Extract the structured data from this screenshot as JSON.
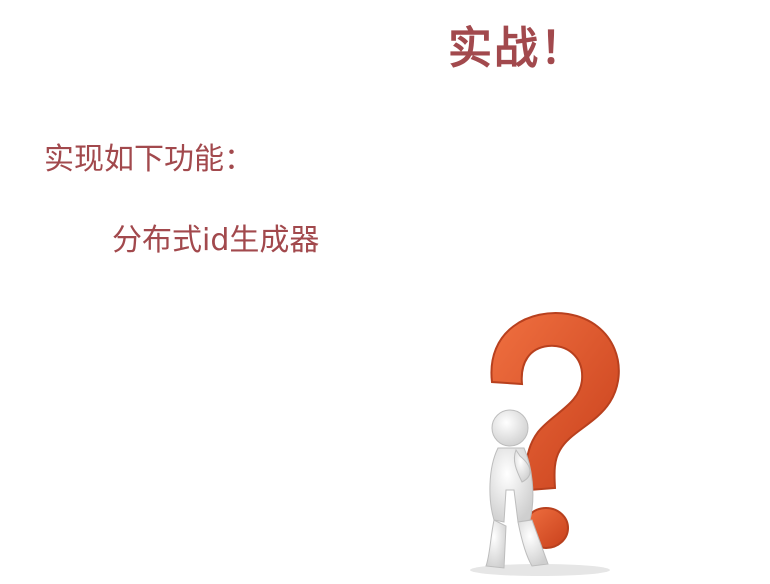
{
  "slide": {
    "title": "实战！",
    "heading": "实现如下功能：",
    "items": [
      "分布式id生成器"
    ],
    "colors": {
      "text": "#a2494d",
      "question_mark": "#e35b2d",
      "figure": "#f0f0f0"
    },
    "illustration": "thinking-person-with-question-mark"
  }
}
